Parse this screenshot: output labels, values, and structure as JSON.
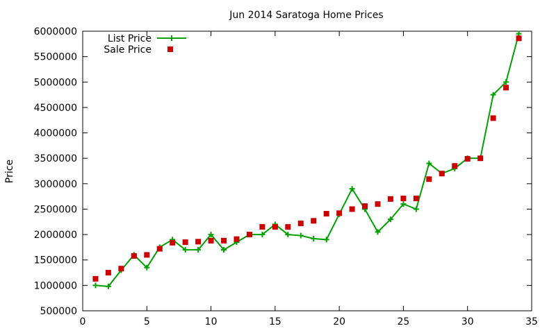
{
  "chart_data": {
    "type": "line",
    "title": "Jun 2014 Saratoga Home Prices",
    "xlabel": "",
    "ylabel": "Price",
    "xlim": [
      0,
      35
    ],
    "ylim": [
      500000,
      6000000
    ],
    "xticks": [
      0,
      5,
      10,
      15,
      20,
      25,
      30,
      35
    ],
    "yticks": [
      500000,
      1000000,
      1500000,
      2000000,
      2500000,
      3000000,
      3500000,
      4000000,
      4500000,
      5000000,
      5500000,
      6000000
    ],
    "grid": false,
    "legend_position": "top-left",
    "series": [
      {
        "name": "List Price",
        "style": "line-with-plus-markers",
        "color": "#00a000",
        "x": [
          1,
          2,
          3,
          4,
          5,
          6,
          7,
          8,
          9,
          10,
          11,
          12,
          13,
          14,
          15,
          16,
          17,
          18,
          19,
          20,
          21,
          22,
          23,
          24,
          25,
          26,
          27,
          28,
          29,
          30,
          31,
          32,
          33,
          34
        ],
        "values": [
          1000000,
          980000,
          1300000,
          1600000,
          1350000,
          1750000,
          1900000,
          1700000,
          1700000,
          2000000,
          1700000,
          1850000,
          2000000,
          2000000,
          2200000,
          2000000,
          1980000,
          1920000,
          1900000,
          2400000,
          2900000,
          2500000,
          2050000,
          2300000,
          2600000,
          2500000,
          3400000,
          3200000,
          3300000,
          3500000,
          3500000,
          4750000,
          5000000,
          5950000
        ]
      },
      {
        "name": "Sale Price",
        "style": "square-markers",
        "color": "#cc0000",
        "x": [
          1,
          2,
          3,
          4,
          5,
          6,
          7,
          8,
          9,
          10,
          11,
          12,
          13,
          14,
          15,
          16,
          17,
          18,
          19,
          20,
          21,
          22,
          23,
          24,
          25,
          26,
          27,
          28,
          29,
          30,
          31,
          32,
          33,
          34
        ],
        "values": [
          1130000,
          1250000,
          1330000,
          1580000,
          1600000,
          1720000,
          1840000,
          1850000,
          1860000,
          1880000,
          1880000,
          1910000,
          2000000,
          2150000,
          2150000,
          2150000,
          2220000,
          2270000,
          2410000,
          2420000,
          2500000,
          2560000,
          2600000,
          2700000,
          2710000,
          2710000,
          3090000,
          3200000,
          3350000,
          3490000,
          3500000,
          4290000,
          4890000,
          5860000
        ]
      }
    ]
  }
}
